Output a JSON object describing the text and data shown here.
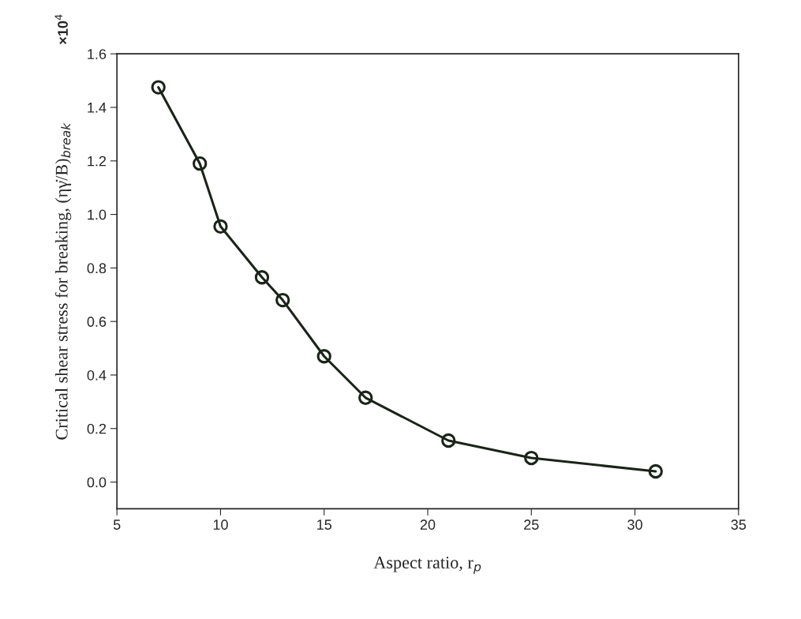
{
  "chart_data": {
    "type": "line",
    "xlabel": "Aspect ratio, r$_{p}$",
    "ylabel": "Critical shear stress for breaking, (ηγ̇/B)$_{break}$",
    "annotations": [
      "×10$^{4}$"
    ],
    "x": [
      7,
      9,
      10,
      12,
      13,
      15,
      17,
      21,
      25,
      31
    ],
    "series": [
      {
        "color": "#1a2418",
        "values": [
          1.475,
          1.19,
          0.955,
          0.765,
          0.68,
          0.47,
          0.315,
          0.155,
          0.09,
          0.04
        ]
      }
    ],
    "marker": "circle",
    "line_style": "solid",
    "xlim": [
      5,
      35
    ],
    "xticks": [
      5,
      10,
      15,
      20,
      25,
      30,
      35
    ],
    "ylim": [
      -0.1,
      1.6
    ],
    "yticks": [
      {
        "value": 0.0,
        "label": "0.0"
      },
      {
        "value": 0.2,
        "label": "0.2"
      },
      {
        "value": 0.4,
        "label": "0.4"
      },
      {
        "value": 0.6,
        "label": "0.6"
      },
      {
        "value": 0.8,
        "label": "0.8"
      },
      {
        "value": 1.0,
        "label": "1.0"
      },
      {
        "value": 1.2,
        "label": "1.2"
      },
      {
        "value": 1.4,
        "label": "1.4"
      },
      {
        "value": 1.6,
        "label": "1.6"
      }
    ],
    "grid": false
  }
}
